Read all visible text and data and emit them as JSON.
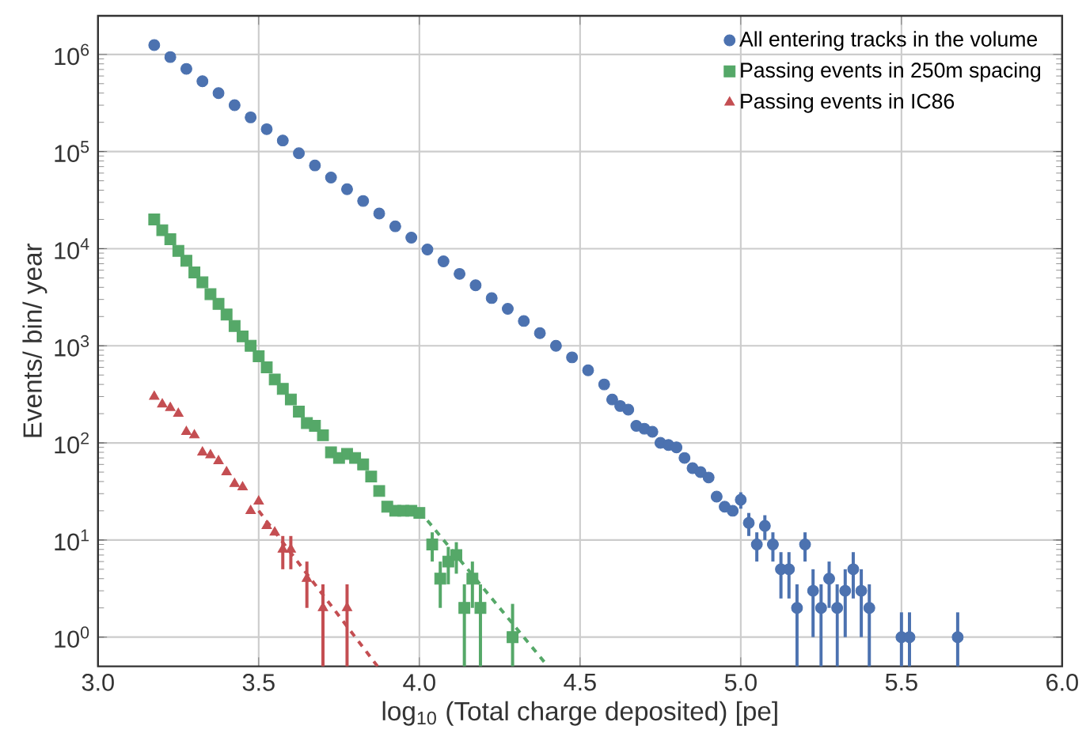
{
  "chart_data": {
    "type": "scatter",
    "xlabel": "log$_{10}$ (Total charge deposited) [pe]",
    "ylabel": "Events/ bin/ year",
    "log": "y",
    "grid": true,
    "legend": "top right",
    "xlim": [
      3.0,
      6.0
    ],
    "ylim": [
      0.5,
      2500000
    ],
    "xticks": [
      {
        "value": 3.0,
        "label": "3.0"
      },
      {
        "value": 3.5,
        "label": "3.5"
      },
      {
        "value": 4.0,
        "label": "4.0"
      },
      {
        "value": 4.5,
        "label": "4.5"
      },
      {
        "value": 5.0,
        "label": "5.0"
      },
      {
        "value": 5.5,
        "label": "5.5"
      },
      {
        "value": 6.0,
        "label": "6.0"
      }
    ],
    "yticks": [
      {
        "value": 1,
        "label": "10$^{0}$"
      },
      {
        "value": 10,
        "label": "10$^{1}$"
      },
      {
        "value": 100,
        "label": "10$^{2}$"
      },
      {
        "value": 1000,
        "label": "10$^{3}$"
      },
      {
        "value": 10000,
        "label": "10$^{4}$"
      },
      {
        "value": 100000,
        "label": "10$^{5}$"
      },
      {
        "value": 1000000,
        "label": "10$^{6}$"
      }
    ],
    "series": [
      {
        "name": "All entering tracks in the volume",
        "color": "#4c72b0",
        "marker": "circle",
        "x": [
          3.175,
          3.225,
          3.275,
          3.325,
          3.375,
          3.425,
          3.475,
          3.525,
          3.575,
          3.625,
          3.675,
          3.725,
          3.775,
          3.825,
          3.875,
          3.925,
          3.975,
          4.025,
          4.075,
          4.125,
          4.175,
          4.225,
          4.275,
          4.325,
          4.375,
          4.425,
          4.475,
          4.525,
          4.575,
          4.6,
          4.625,
          4.65,
          4.675,
          4.7,
          4.725,
          4.75,
          4.775,
          4.8,
          4.825,
          4.85,
          4.875,
          4.9,
          4.925,
          4.95,
          4.975,
          5.0,
          5.025,
          5.05,
          5.075,
          5.1,
          5.125,
          5.15,
          5.175,
          5.2,
          5.225,
          5.25,
          5.275,
          5.3,
          5.325,
          5.35,
          5.375,
          5.4,
          5.5,
          5.525,
          5.675
        ],
        "values": [
          1250000,
          940000,
          710000,
          530000,
          400000,
          300000,
          225000,
          170000,
          130000,
          96000,
          72000,
          54000,
          41000,
          31000,
          23000,
          17000,
          13000,
          9800,
          7400,
          5500,
          4200,
          3100,
          2400,
          1800,
          1350,
          1000,
          760,
          560,
          400,
          280,
          240,
          220,
          150,
          140,
          130,
          100,
          95,
          90,
          70,
          55,
          50,
          44,
          28,
          22,
          20,
          26,
          15,
          9,
          14,
          9,
          5,
          5,
          2,
          9,
          3,
          2,
          4,
          2,
          3,
          5,
          3,
          2,
          1,
          1,
          1
        ],
        "errors": [
          null,
          null,
          null,
          null,
          null,
          null,
          null,
          null,
          null,
          null,
          null,
          null,
          null,
          null,
          null,
          null,
          null,
          null,
          null,
          null,
          null,
          null,
          null,
          null,
          null,
          null,
          null,
          null,
          null,
          null,
          null,
          null,
          null,
          null,
          null,
          null,
          null,
          null,
          null,
          null,
          null,
          null,
          null,
          null,
          null,
          [
            21,
            31
          ],
          [
            11,
            19
          ],
          [
            6,
            12
          ],
          [
            10,
            18
          ],
          [
            6,
            12
          ],
          [
            2.5,
            7.5
          ],
          [
            2.5,
            7.5
          ],
          [
            0.5,
            3.5
          ],
          [
            6,
            12
          ],
          [
            1,
            5
          ],
          [
            0.5,
            3.5
          ],
          [
            2,
            6
          ],
          [
            0.5,
            3.5
          ],
          [
            1,
            5
          ],
          [
            2.5,
            7.5
          ],
          [
            1,
            5
          ],
          [
            0.5,
            3.5
          ],
          [
            0.5,
            1.8
          ],
          [
            0.5,
            1.8
          ],
          [
            0.5,
            1.8
          ]
        ]
      },
      {
        "name": "Passing events in 250m spacing",
        "color": "#55a868",
        "marker": "square",
        "x": [
          3.175,
          3.2,
          3.225,
          3.25,
          3.275,
          3.3,
          3.325,
          3.35,
          3.375,
          3.4,
          3.425,
          3.45,
          3.475,
          3.5,
          3.525,
          3.55,
          3.575,
          3.6,
          3.625,
          3.65,
          3.675,
          3.7,
          3.725,
          3.75,
          3.775,
          3.8,
          3.825,
          3.85,
          3.875,
          3.9,
          3.925,
          3.95,
          3.975,
          4.0,
          4.04,
          4.065,
          4.09,
          4.115,
          4.14,
          4.165,
          4.19,
          4.29
        ],
        "values": [
          20000,
          15500,
          12500,
          9500,
          7500,
          5700,
          4500,
          3400,
          2700,
          2100,
          1600,
          1250,
          1000,
          780,
          600,
          450,
          360,
          280,
          210,
          160,
          150,
          120,
          80,
          70,
          77,
          70,
          60,
          45,
          32,
          22,
          20,
          20,
          20,
          19,
          9,
          4,
          6,
          7,
          2,
          4,
          2,
          1
        ],
        "errors": [
          null,
          null,
          null,
          null,
          null,
          null,
          null,
          null,
          null,
          null,
          null,
          null,
          null,
          null,
          null,
          null,
          null,
          null,
          null,
          null,
          null,
          null,
          null,
          null,
          null,
          null,
          null,
          null,
          null,
          null,
          null,
          null,
          null,
          null,
          [
            6,
            12
          ],
          [
            2,
            6
          ],
          [
            3.5,
            8.5
          ],
          [
            4.5,
            9.5
          ],
          [
            0.5,
            3.5
          ],
          [
            2,
            6
          ],
          [
            0.5,
            3.5
          ],
          [
            0.5,
            2.2
          ]
        ]
      },
      {
        "name": "Passing events in IC86",
        "color": "#c44e52",
        "marker": "triangle",
        "x": [
          3.175,
          3.2,
          3.225,
          3.25,
          3.275,
          3.3,
          3.325,
          3.35,
          3.375,
          3.4,
          3.425,
          3.45,
          3.475,
          3.5,
          3.525,
          3.55,
          3.575,
          3.6,
          3.65,
          3.7,
          3.775
        ],
        "values": [
          300,
          250,
          230,
          200,
          130,
          120,
          80,
          75,
          65,
          50,
          38,
          35,
          20,
          25,
          14,
          12,
          8,
          8,
          4,
          2,
          2
        ],
        "errors": [
          null,
          null,
          null,
          null,
          null,
          null,
          null,
          null,
          null,
          null,
          null,
          null,
          null,
          null,
          null,
          null,
          [
            5,
            11
          ],
          [
            5,
            11
          ],
          [
            2,
            6
          ],
          [
            0.5,
            3.5
          ],
          [
            0.5,
            3.5
          ]
        ]
      },
      {
        "type": "line",
        "color": "#55a868",
        "line_style": "dashed",
        "marker": "none",
        "x": [
          4.0,
          4.4
        ],
        "values": [
          20,
          0.5
        ]
      },
      {
        "type": "line",
        "color": "#c44e52",
        "line_style": "dashed",
        "marker": "none",
        "x": [
          3.5,
          3.87
        ],
        "values": [
          20,
          0.5
        ]
      }
    ]
  }
}
